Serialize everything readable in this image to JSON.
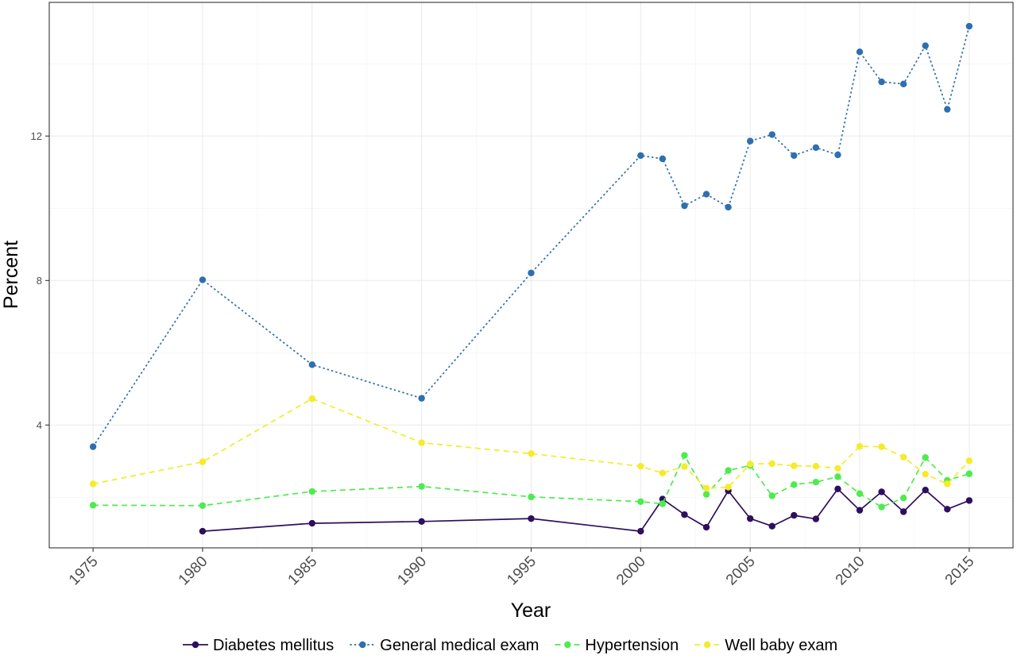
{
  "chart_data": {
    "type": "line",
    "title": "",
    "xlabel": "Year",
    "ylabel": "Percent",
    "xlim": [
      1973,
      2017
    ],
    "ylim": [
      0.6,
      15.7
    ],
    "x_ticks": [
      "1975",
      "1980",
      "1985",
      "1990",
      "1995",
      "2000",
      "2005",
      "2010",
      "2015"
    ],
    "y_ticks": [
      "4",
      "8",
      "12"
    ],
    "grid": true,
    "legend_position": "bottom",
    "series": [
      {
        "name": "Diabetes mellitus",
        "color": "#2d0f5e",
        "dash": "solid",
        "x": [
          1980,
          1985,
          1990,
          1995,
          2000,
          2001,
          2002,
          2003,
          2004,
          2005,
          2006,
          2007,
          2008,
          2009,
          2010,
          2011,
          2012,
          2013,
          2014,
          2015
        ],
        "y": [
          1.06,
          1.28,
          1.33,
          1.41,
          1.06,
          1.95,
          1.52,
          1.17,
          2.18,
          1.41,
          1.2,
          1.5,
          1.4,
          2.23,
          1.64,
          2.15,
          1.6,
          2.2,
          1.67,
          1.91
        ]
      },
      {
        "name": "General medical exam",
        "color": "#2e6fb0",
        "dash": "dotted",
        "x": [
          1975,
          1980,
          1985,
          1990,
          1995,
          2000,
          2001,
          2002,
          2003,
          2004,
          2005,
          2006,
          2007,
          2008,
          2009,
          2010,
          2011,
          2012,
          2013,
          2014,
          2015
        ],
        "y": [
          3.4,
          8.02,
          5.67,
          4.74,
          8.21,
          11.46,
          11.37,
          10.07,
          10.39,
          10.03,
          11.86,
          12.04,
          11.46,
          11.68,
          11.48,
          14.33,
          13.5,
          13.44,
          14.5,
          12.74,
          15.04
        ]
      },
      {
        "name": "Hypertension",
        "color": "#4eeb4e",
        "dash": "dashed",
        "x": [
          1975,
          1980,
          1985,
          1990,
          1995,
          2000,
          2001,
          2002,
          2003,
          2004,
          2005,
          2006,
          2007,
          2008,
          2009,
          2010,
          2011,
          2012,
          2013,
          2014,
          2015
        ],
        "y": [
          1.78,
          1.77,
          2.16,
          2.3,
          2.01,
          1.88,
          1.82,
          3.16,
          2.08,
          2.74,
          2.88,
          2.04,
          2.35,
          2.42,
          2.57,
          2.1,
          1.73,
          1.98,
          3.1,
          2.47,
          2.65
        ]
      },
      {
        "name": "Well baby exam",
        "color": "#f5eb2a",
        "dash": "dashed",
        "x": [
          1975,
          1980,
          1985,
          1990,
          1995,
          2000,
          2001,
          2002,
          2003,
          2004,
          2005,
          2006,
          2007,
          2008,
          2009,
          2010,
          2011,
          2012,
          2013,
          2014,
          2015
        ],
        "y": [
          2.37,
          2.98,
          4.73,
          3.51,
          3.21,
          2.86,
          2.67,
          2.85,
          2.25,
          2.28,
          2.92,
          2.93,
          2.87,
          2.86,
          2.8,
          3.41,
          3.4,
          3.11,
          2.64,
          2.37,
          3.01
        ]
      }
    ]
  }
}
